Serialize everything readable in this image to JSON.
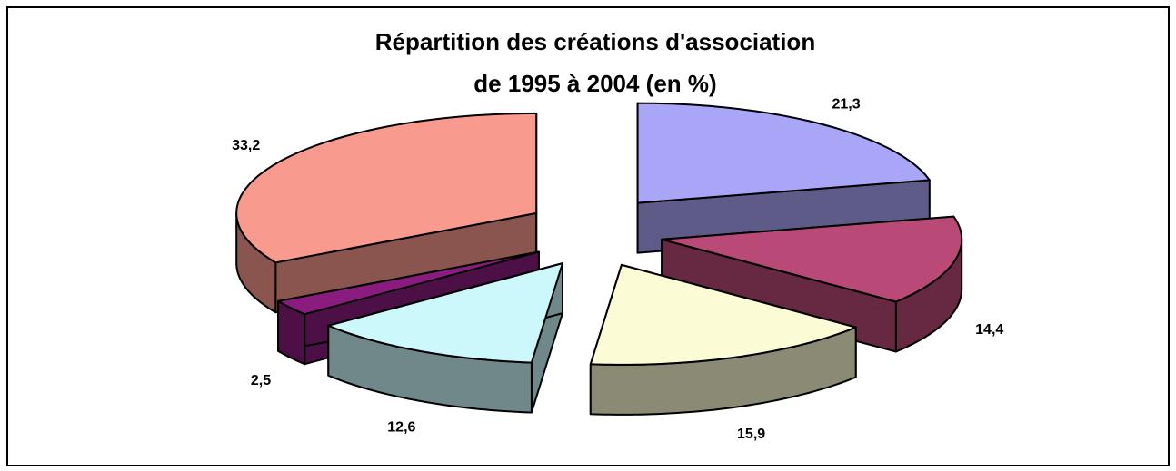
{
  "chart_data": {
    "type": "pie3d",
    "title": [
      "Répartition des créations d'association",
      "de 1995 à 2004 (en %)"
    ],
    "values": [
      21.3,
      14.4,
      15.9,
      12.6,
      2.5,
      33.2
    ],
    "value_labels": [
      "21,3",
      "14,4",
      "15,9",
      "12,6",
      "2,5",
      "33,2"
    ],
    "colors": [
      "#aaa6f7",
      "#b94a77",
      "#fbfbd5",
      "#ccf7fb",
      "#8b1c7f",
      "#f99a8e"
    ]
  }
}
